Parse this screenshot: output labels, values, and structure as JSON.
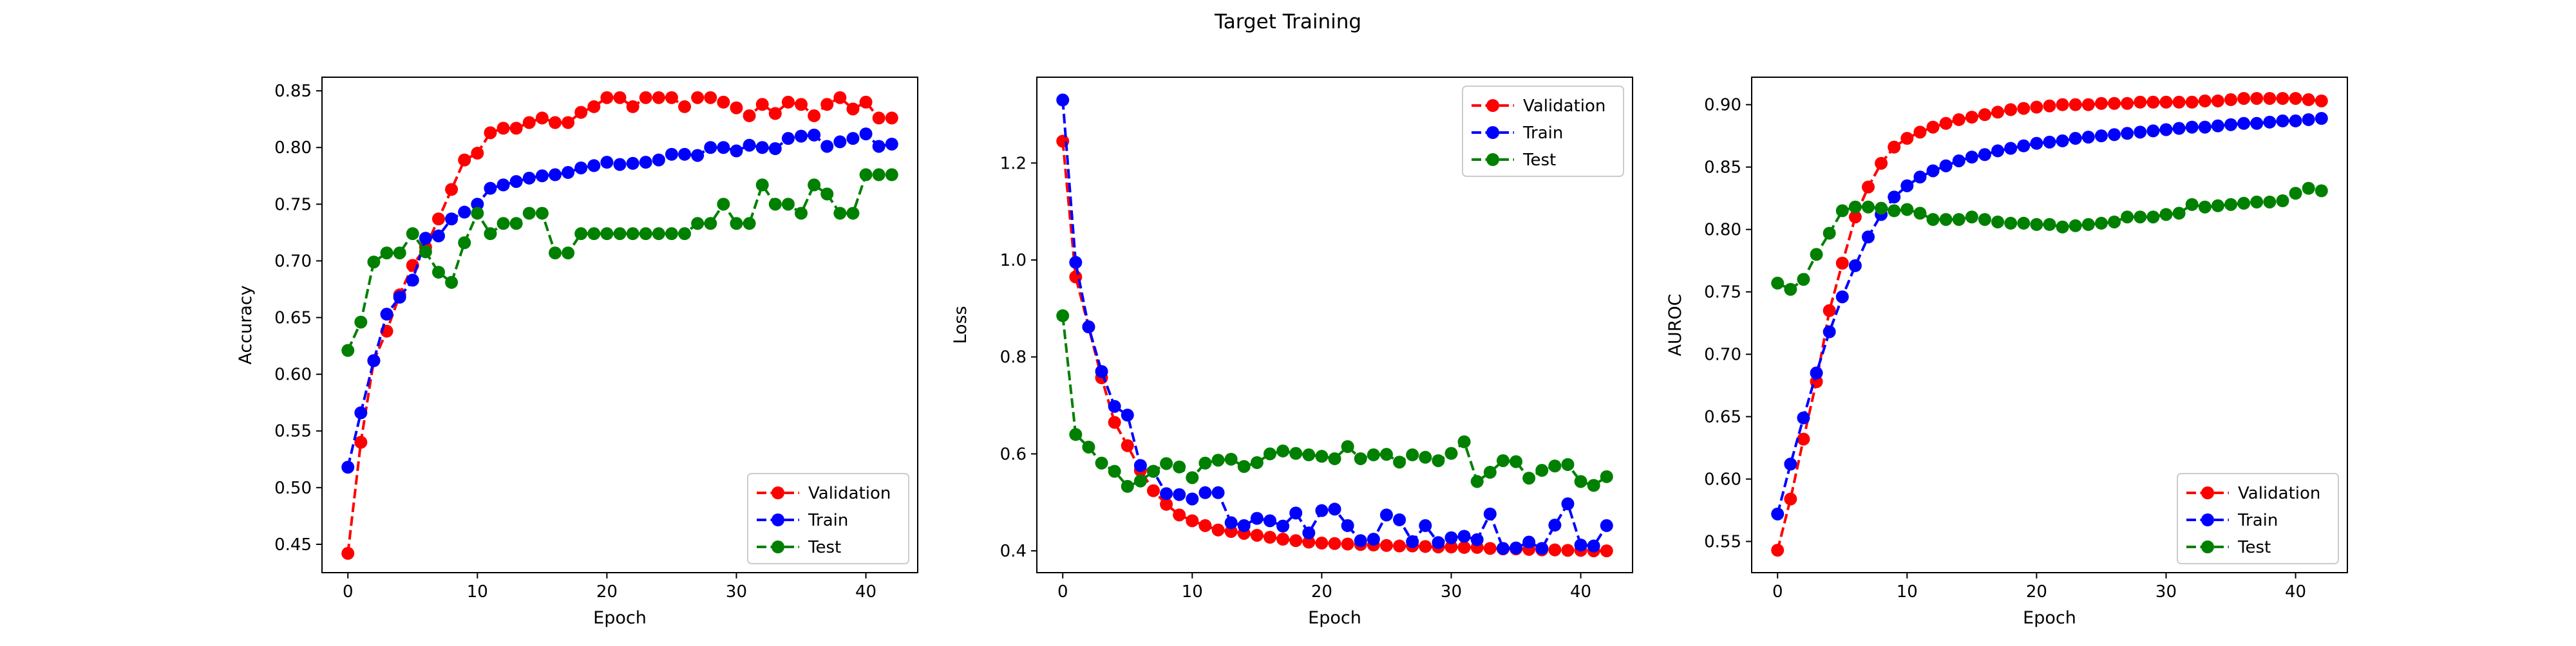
{
  "figure": {
    "title": "Target Training"
  },
  "colors": {
    "Validation": "#ff0000",
    "Train": "#0000ff",
    "Test": "#008000"
  },
  "chart_data": [
    {
      "type": "line",
      "xlabel": "Epoch",
      "ylabel": "Accuracy",
      "xlim": [
        -2,
        44
      ],
      "ylim": [
        0.425,
        0.862
      ],
      "xticks": [
        0,
        10,
        20,
        30,
        40
      ],
      "yticks": [
        0.45,
        0.5,
        0.55,
        0.6,
        0.65,
        0.7,
        0.75,
        0.8,
        0.85
      ],
      "ytick_labels": [
        "0.45",
        "0.50",
        "0.55",
        "0.60",
        "0.65",
        "0.70",
        "0.75",
        "0.80",
        "0.85"
      ],
      "legend": "lower-right",
      "grid": false,
      "x": [
        0,
        1,
        2,
        3,
        4,
        5,
        6,
        7,
        8,
        9,
        10,
        11,
        12,
        13,
        14,
        15,
        16,
        17,
        18,
        19,
        20,
        21,
        22,
        23,
        24,
        25,
        26,
        27,
        28,
        29,
        30,
        31,
        32,
        33,
        34,
        35,
        36,
        37,
        38,
        39,
        40,
        41,
        42
      ],
      "series": [
        {
          "name": "Validation",
          "color": "#ff0000",
          "values": [
            0.442,
            0.54,
            0.612,
            0.638,
            0.67,
            0.696,
            0.712,
            0.737,
            0.763,
            0.789,
            0.795,
            0.813,
            0.817,
            0.817,
            0.822,
            0.826,
            0.822,
            0.822,
            0.831,
            0.836,
            0.844,
            0.844,
            0.836,
            0.844,
            0.844,
            0.844,
            0.836,
            0.844,
            0.844,
            0.84,
            0.835,
            0.828,
            0.838,
            0.83,
            0.84,
            0.838,
            0.828,
            0.838,
            0.844,
            0.834,
            0.84,
            0.826,
            0.826
          ]
        },
        {
          "name": "Train",
          "color": "#0000ff",
          "values": [
            0.518,
            0.566,
            0.612,
            0.653,
            0.668,
            0.683,
            0.72,
            0.722,
            0.737,
            0.743,
            0.75,
            0.764,
            0.767,
            0.77,
            0.773,
            0.775,
            0.776,
            0.778,
            0.782,
            0.784,
            0.787,
            0.785,
            0.786,
            0.787,
            0.789,
            0.794,
            0.794,
            0.793,
            0.8,
            0.8,
            0.797,
            0.802,
            0.8,
            0.799,
            0.808,
            0.81,
            0.811,
            0.801,
            0.805,
            0.808,
            0.812,
            0.801,
            0.803
          ]
        },
        {
          "name": "Test",
          "color": "#008000",
          "values": [
            0.621,
            0.646,
            0.699,
            0.707,
            0.707,
            0.724,
            0.708,
            0.69,
            0.681,
            0.716,
            0.742,
            0.724,
            0.733,
            0.733,
            0.742,
            0.742,
            0.707,
            0.707,
            0.724,
            0.724,
            0.724,
            0.724,
            0.724,
            0.724,
            0.724,
            0.724,
            0.724,
            0.733,
            0.733,
            0.75,
            0.733,
            0.733,
            0.767,
            0.75,
            0.75,
            0.742,
            0.767,
            0.759,
            0.742,
            0.742,
            0.776,
            0.776,
            0.776
          ]
        }
      ]
    },
    {
      "type": "line",
      "xlabel": "Epoch",
      "ylabel": "Loss",
      "xlim": [
        -2,
        44
      ],
      "ylim": [
        0.355,
        1.377
      ],
      "xticks": [
        0,
        10,
        20,
        30,
        40
      ],
      "yticks": [
        0.4,
        0.6,
        0.8,
        1.0,
        1.2
      ],
      "ytick_labels": [
        "0.4",
        "0.6",
        "0.8",
        "1.0",
        "1.2"
      ],
      "legend": "upper-right",
      "grid": false,
      "x": [
        0,
        1,
        2,
        3,
        4,
        5,
        6,
        7,
        8,
        9,
        10,
        11,
        12,
        13,
        14,
        15,
        16,
        17,
        18,
        19,
        20,
        21,
        22,
        23,
        24,
        25,
        26,
        27,
        28,
        29,
        30,
        31,
        32,
        33,
        34,
        35,
        36,
        37,
        38,
        39,
        40,
        41,
        42
      ],
      "series": [
        {
          "name": "Validation",
          "color": "#ff0000",
          "values": [
            1.245,
            0.965,
            0.862,
            0.757,
            0.665,
            0.617,
            0.566,
            0.524,
            0.496,
            0.474,
            0.462,
            0.452,
            0.443,
            0.44,
            0.436,
            0.432,
            0.428,
            0.424,
            0.421,
            0.418,
            0.416,
            0.415,
            0.414,
            0.413,
            0.412,
            0.411,
            0.41,
            0.41,
            0.409,
            0.408,
            0.408,
            0.407,
            0.407,
            0.405,
            0.404,
            0.404,
            0.403,
            0.402,
            0.402,
            0.401,
            0.401,
            0.4,
            0.4
          ]
        },
        {
          "name": "Train",
          "color": "#0000ff",
          "values": [
            1.33,
            0.995,
            0.862,
            0.77,
            0.698,
            0.68,
            0.576,
            0.564,
            0.518,
            0.516,
            0.507,
            0.52,
            0.52,
            0.458,
            0.452,
            0.467,
            0.462,
            0.451,
            0.478,
            0.437,
            0.483,
            0.486,
            0.452,
            0.421,
            0.424,
            0.474,
            0.464,
            0.419,
            0.452,
            0.417,
            0.427,
            0.43,
            0.423,
            0.476,
            0.405,
            0.406,
            0.418,
            0.405,
            0.453,
            0.497,
            0.412,
            0.41,
            0.452
          ]
        },
        {
          "name": "Test",
          "color": "#008000",
          "values": [
            0.885,
            0.64,
            0.614,
            0.581,
            0.564,
            0.533,
            0.544,
            0.564,
            0.58,
            0.573,
            0.551,
            0.581,
            0.587,
            0.589,
            0.574,
            0.582,
            0.6,
            0.606,
            0.601,
            0.598,
            0.595,
            0.59,
            0.615,
            0.59,
            0.598,
            0.599,
            0.583,
            0.598,
            0.593,
            0.586,
            0.601,
            0.625,
            0.543,
            0.562,
            0.586,
            0.584,
            0.55,
            0.566,
            0.575,
            0.578,
            0.543,
            0.535,
            0.553
          ]
        }
      ]
    },
    {
      "type": "line",
      "xlabel": "Epoch",
      "ylabel": "AUROC",
      "xlim": [
        -2,
        44
      ],
      "ylim": [
        0.525,
        0.922
      ],
      "xticks": [
        0,
        10,
        20,
        30,
        40
      ],
      "yticks": [
        0.55,
        0.6,
        0.65,
        0.7,
        0.75,
        0.8,
        0.85,
        0.9
      ],
      "ytick_labels": [
        "0.55",
        "0.60",
        "0.65",
        "0.70",
        "0.75",
        "0.80",
        "0.85",
        "0.90"
      ],
      "legend": "lower-right",
      "grid": false,
      "x": [
        0,
        1,
        2,
        3,
        4,
        5,
        6,
        7,
        8,
        9,
        10,
        11,
        12,
        13,
        14,
        15,
        16,
        17,
        18,
        19,
        20,
        21,
        22,
        23,
        24,
        25,
        26,
        27,
        28,
        29,
        30,
        31,
        32,
        33,
        34,
        35,
        36,
        37,
        38,
        39,
        40,
        41,
        42
      ],
      "series": [
        {
          "name": "Validation",
          "color": "#ff0000",
          "values": [
            0.543,
            0.584,
            0.632,
            0.678,
            0.735,
            0.773,
            0.81,
            0.834,
            0.853,
            0.866,
            0.873,
            0.878,
            0.882,
            0.885,
            0.888,
            0.89,
            0.892,
            0.894,
            0.896,
            0.897,
            0.898,
            0.899,
            0.9,
            0.9,
            0.9,
            0.901,
            0.901,
            0.901,
            0.902,
            0.902,
            0.902,
            0.902,
            0.902,
            0.903,
            0.903,
            0.904,
            0.905,
            0.905,
            0.905,
            0.905,
            0.905,
            0.904,
            0.903
          ]
        },
        {
          "name": "Train",
          "color": "#0000ff",
          "values": [
            0.572,
            0.612,
            0.649,
            0.685,
            0.718,
            0.746,
            0.771,
            0.794,
            0.812,
            0.826,
            0.835,
            0.842,
            0.847,
            0.851,
            0.855,
            0.858,
            0.86,
            0.863,
            0.865,
            0.867,
            0.869,
            0.87,
            0.871,
            0.873,
            0.874,
            0.875,
            0.876,
            0.877,
            0.878,
            0.879,
            0.88,
            0.881,
            0.882,
            0.882,
            0.883,
            0.884,
            0.885,
            0.885,
            0.886,
            0.887,
            0.887,
            0.888,
            0.889
          ]
        },
        {
          "name": "Test",
          "color": "#008000",
          "values": [
            0.757,
            0.752,
            0.76,
            0.78,
            0.797,
            0.815,
            0.818,
            0.818,
            0.817,
            0.815,
            0.816,
            0.813,
            0.808,
            0.808,
            0.808,
            0.81,
            0.808,
            0.806,
            0.805,
            0.805,
            0.804,
            0.804,
            0.802,
            0.803,
            0.804,
            0.805,
            0.806,
            0.81,
            0.81,
            0.81,
            0.812,
            0.813,
            0.82,
            0.818,
            0.819,
            0.82,
            0.821,
            0.822,
            0.822,
            0.823,
            0.829,
            0.833,
            0.831
          ]
        }
      ]
    }
  ]
}
